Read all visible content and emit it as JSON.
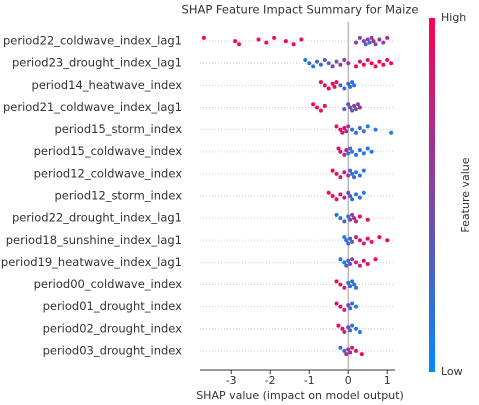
{
  "chart_data": {
    "type": "beeswarm",
    "title": "SHAP Feature Impact Summary for Maize",
    "xlabel": "SHAP value (impact on model output)",
    "xlim": [
      -3.8,
      1.2
    ],
    "xticks": [
      -3,
      -2,
      -1,
      0,
      1
    ],
    "colorbar_label": "Feature value",
    "colorbar_high": "High",
    "colorbar_low": "Low",
    "rows": [
      {
        "name": "period22_coldwave_index_lag1",
        "values": [
          -3.7,
          -2.9,
          -2.8,
          -2.3,
          -2.1,
          -1.9,
          -1.6,
          -1.4,
          -1.2,
          0.2,
          0.3,
          0.4,
          0.45,
          0.5,
          0.55,
          0.6,
          0.65,
          0.7,
          0.8,
          0.9,
          1.0
        ],
        "feature_values": [
          1,
          1,
          0.95,
          0.9,
          1,
          0.9,
          0.95,
          1,
          0.9,
          0.6,
          0.4,
          0.5,
          0.3,
          0.6,
          0.2,
          0.5,
          0.7,
          0.4,
          0.6,
          0.5,
          0.7
        ]
      },
      {
        "name": "period23_drought_index_lag1",
        "values": [
          -1.1,
          -1.0,
          -0.9,
          -0.8,
          -0.7,
          -0.6,
          -0.5,
          -0.4,
          -0.3,
          -0.2,
          -0.1,
          0.0,
          0.2,
          0.3,
          0.4,
          0.5,
          0.6,
          0.7,
          0.8,
          0.9,
          1.0,
          1.1
        ],
        "feature_values": [
          0.1,
          0.2,
          0.1,
          0.3,
          0.2,
          0.4,
          0.3,
          0.5,
          0.4,
          0.6,
          0.5,
          0.6,
          0.9,
          0.8,
          1,
          0.9,
          1,
          0.9,
          0.95,
          1,
          0.9,
          1
        ]
      },
      {
        "name": "period14_heatwave_index",
        "values": [
          -0.7,
          -0.6,
          -0.5,
          -0.4,
          -0.35,
          -0.3,
          -0.2,
          -0.1,
          0.0,
          0.05,
          0.1,
          0.15
        ],
        "feature_values": [
          0.95,
          0.9,
          1,
          0.9,
          0.85,
          0.95,
          0.3,
          0.2,
          0.25,
          0.15,
          0.2,
          0.1
        ]
      },
      {
        "name": "period21_coldwave_index_lag1",
        "values": [
          -0.9,
          -0.8,
          -0.7,
          -0.6,
          -0.1,
          0.0,
          0.05,
          0.1,
          0.15,
          0.2,
          0.25,
          0.3
        ],
        "feature_values": [
          1,
          0.95,
          0.9,
          1,
          0.3,
          0.4,
          0.5,
          0.3,
          0.6,
          0.4,
          0.5,
          0.6
        ]
      },
      {
        "name": "period15_storm_index",
        "values": [
          -0.3,
          -0.2,
          -0.15,
          -0.1,
          -0.05,
          0.0,
          0.1,
          0.2,
          0.3,
          0.4,
          0.5,
          0.7,
          1.1
        ],
        "feature_values": [
          0.9,
          0.95,
          0.8,
          0.9,
          0.7,
          0.6,
          0.2,
          0.15,
          0.3,
          0.2,
          0.1,
          0.15,
          0.1
        ]
      },
      {
        "name": "period15_coldwave_index",
        "values": [
          -0.25,
          -0.2,
          -0.1,
          -0.05,
          0.0,
          0.05,
          0.1,
          0.2,
          0.3,
          0.4,
          0.5,
          0.6
        ],
        "feature_values": [
          0.9,
          0.85,
          0.7,
          0.8,
          0.2,
          0.3,
          0.1,
          0.15,
          0.2,
          0.1,
          0.2,
          0.1
        ]
      },
      {
        "name": "period12_coldwave_index",
        "values": [
          -0.4,
          -0.3,
          -0.2,
          -0.1,
          0.0,
          0.05,
          0.1,
          0.15,
          0.2,
          0.3,
          0.4
        ],
        "feature_values": [
          1,
          0.9,
          0.8,
          0.9,
          0.6,
          0.3,
          0.2,
          0.3,
          0.15,
          0.1,
          0.2
        ]
      },
      {
        "name": "period12_storm_index",
        "values": [
          -0.5,
          -0.4,
          -0.3,
          -0.2,
          -0.1,
          0.0,
          0.05,
          0.1,
          0.2,
          0.3,
          0.4
        ],
        "feature_values": [
          1,
          0.95,
          0.9,
          0.85,
          0.8,
          0.5,
          0.3,
          0.2,
          0.15,
          0.2,
          0.1
        ]
      },
      {
        "name": "period22_drought_index_lag1",
        "values": [
          -0.3,
          -0.2,
          -0.1,
          0.0,
          0.05,
          0.1,
          0.15,
          0.2,
          0.3,
          0.5
        ],
        "feature_values": [
          0.1,
          0.2,
          0.3,
          0.2,
          0.4,
          0.6,
          0.7,
          0.8,
          0.9,
          1
        ]
      },
      {
        "name": "period18_sunshine_index_lag1",
        "values": [
          -0.1,
          -0.05,
          0.0,
          0.05,
          0.1,
          0.2,
          0.3,
          0.4,
          0.5,
          0.6,
          0.8,
          1.0
        ],
        "feature_values": [
          0.1,
          0.2,
          0.15,
          0.3,
          0.4,
          0.8,
          0.9,
          0.85,
          0.95,
          0.9,
          1,
          0.95
        ]
      },
      {
        "name": "period19_heatwave_index_lag1",
        "values": [
          -0.2,
          -0.1,
          -0.05,
          0.0,
          0.05,
          0.1,
          0.2,
          0.3,
          0.4,
          0.5,
          0.7
        ],
        "feature_values": [
          0.2,
          0.1,
          0.3,
          0.2,
          0.4,
          0.6,
          0.7,
          0.8,
          0.9,
          0.95,
          1
        ]
      },
      {
        "name": "period00_coldwave_index",
        "values": [
          -0.3,
          -0.2,
          -0.1,
          0.0,
          0.05,
          0.1,
          0.15,
          0.2
        ],
        "feature_values": [
          1,
          0.9,
          0.8,
          0.3,
          0.2,
          0.15,
          0.1,
          0.2
        ]
      },
      {
        "name": "period01_drought_index",
        "values": [
          -0.3,
          -0.2,
          -0.1,
          0.0,
          0.05,
          0.1,
          0.2
        ],
        "feature_values": [
          0.9,
          0.95,
          0.8,
          0.5,
          0.3,
          0.2,
          0.1
        ]
      },
      {
        "name": "period02_drought_index",
        "values": [
          -0.25,
          -0.15,
          -0.1,
          0.0,
          0.05,
          0.1,
          0.2,
          0.3
        ],
        "feature_values": [
          0.95,
          0.9,
          0.7,
          0.5,
          0.3,
          0.2,
          0.15,
          0.1
        ]
      },
      {
        "name": "period03_drought_index",
        "values": [
          -0.2,
          -0.1,
          -0.05,
          0.0,
          0.05,
          0.1,
          0.2,
          0.35
        ],
        "feature_values": [
          0.2,
          0.3,
          0.6,
          0.5,
          0.7,
          0.8,
          0.9,
          1
        ]
      }
    ]
  }
}
